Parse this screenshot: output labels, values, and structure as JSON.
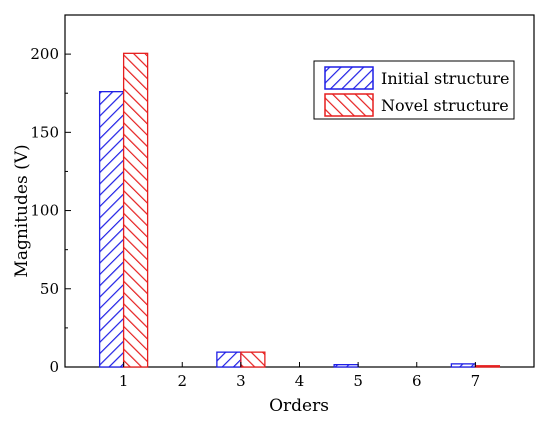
{
  "chart_data": {
    "type": "bar",
    "xlabel": "Orders",
    "ylabel": "Magnitudes (V)",
    "categories": [
      "1",
      "2",
      "3",
      "4",
      "5",
      "6",
      "7"
    ],
    "ylim": [
      0,
      225
    ],
    "yticks": [
      "0",
      "50",
      "100",
      "150",
      "200"
    ],
    "series": [
      {
        "name": "Initial structure",
        "color": "#1f1fe6",
        "hatch": "forward-diagonal",
        "values": [
          176,
          0,
          9.5,
          0,
          1.5,
          0,
          2
        ]
      },
      {
        "name": "Novel structure",
        "color": "#e61f1f",
        "hatch": "backward-diagonal",
        "values": [
          200.5,
          0,
          9.5,
          0,
          0,
          0,
          0.8
        ]
      }
    ],
    "legend": "top-right",
    "grid": false
  }
}
